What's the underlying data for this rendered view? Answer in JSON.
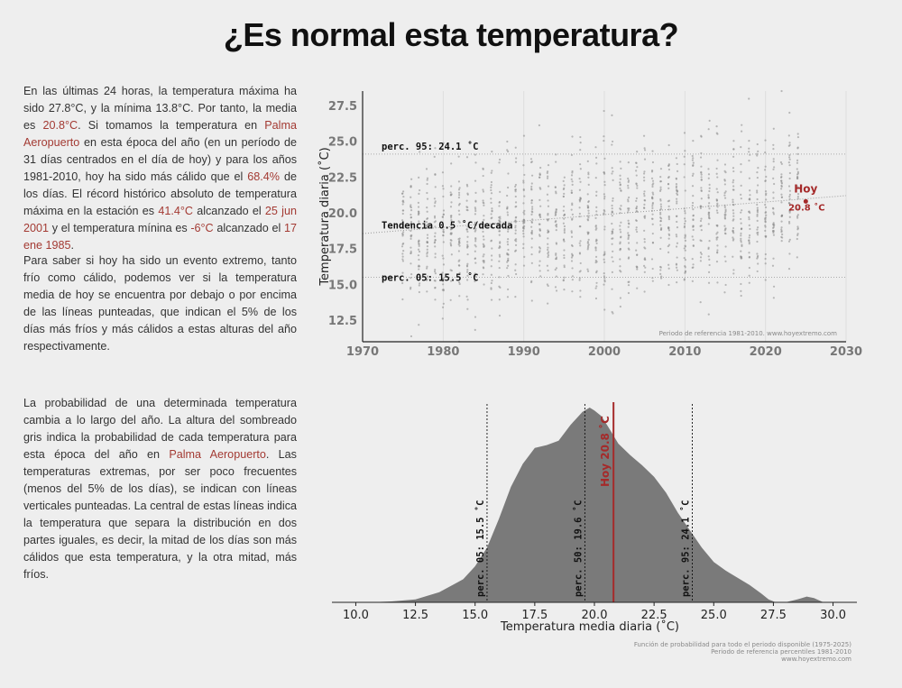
{
  "title": "¿Es normal esta temperatura?",
  "para1": {
    "t1": "En las últimas 24 horas, la temperatura máxima ha sido 27.8°C, y la mínima 13.8°C. Por tanto, la media es ",
    "h1": "20.8°C",
    "t2": ". Si tomamos la temperatura en ",
    "h2": "Palma Aeropuerto",
    "t3": " en esta época del año (en un período de 31 días centrados en el día de hoy) y para los años 1981-2010, hoy ha sido más cálido que el ",
    "h3": "68.4%",
    "t4": " de los días. El récord histórico absoluto de temperatura máxima en la estación es ",
    "h4": "41.4°C",
    "t5": " alcanzado el ",
    "h5": "25 jun 2001",
    "t6": " y el temperatura mínina es ",
    "h6": "-6°C",
    "t7": " alcanzado el ",
    "h7": "17 ene 1985",
    "t8": "."
  },
  "para2": "Para saber si hoy ha sido un evento extremo, tanto frío como cálido, podemos ver si la temperatura media de hoy se encuentra por debajo o por encima de las líneas punteadas, que indican el 5% de los días más fríos y más cálidos a estas alturas del año respectivamente.",
  "para3": {
    "t1": "La probabilidad de una determinada temperatura cambia a lo largo del año. La altura del sombreado gris indica la probabilidad de cada temperatura para esta época del año en ",
    "h1": "Palma Aeropuerto",
    "t2": ". Las temperaturas extremas, por ser poco frecuentes (menos del 5% de los días), se indican con líneas verticales punteadas. La central de estas líneas indica la temperatura que separa la distribución en dos partes iguales, es decir, la mitad de los días son más cálidos que esta temperatura, y la otra mitad, más fríos."
  },
  "colors": {
    "highlight": "#a33a33",
    "today": "#a52a2a",
    "density": "#7a7a7a",
    "points": "#888888"
  },
  "chart_data": [
    {
      "type": "scatter",
      "ylabel": "Temperatura diaria ($^\\circ$C)",
      "ylabel_text": "Temperatura diaria (˚C)",
      "xlim": [
        1970,
        2030
      ],
      "ylim": [
        11,
        28.5
      ],
      "xticks": [
        1970,
        1980,
        1990,
        2000,
        2010,
        2020,
        2030
      ],
      "yticks": [
        12.5,
        15.0,
        17.5,
        20.0,
        22.5,
        25.0,
        27.5
      ],
      "ytick_labels": [
        "12.5",
        "15.0",
        "17.5",
        "20.0",
        "22.5",
        "25.0",
        "27.5"
      ],
      "years": [
        1975,
        2025
      ],
      "points_per_year": 31,
      "p95": 24.1,
      "p05": 15.5,
      "p95_label": "perc. 95: 24.1 ˚C",
      "p05_label": "perc. 05: 15.5 ˚C",
      "trend_label": "Tendencia 0.5 ˚C/decada",
      "trend_per_decade": 0.5,
      "trend_line": [
        [
          1970,
          18.55
        ],
        [
          2030,
          21.2
        ]
      ],
      "today": {
        "year": 2025,
        "value": 20.8,
        "label": "Hoy",
        "value_label": "20.8 ˚C"
      },
      "footnote": "Periodo de referencia 1981-2010. www.hoyextremo.com"
    },
    {
      "type": "area",
      "xlabel": "Temperatura media diaria (˚C)",
      "xlim": [
        9.0,
        31.0
      ],
      "xticks": [
        10.0,
        12.5,
        15.0,
        17.5,
        20.0,
        22.5,
        25.0,
        27.5,
        30.0
      ],
      "xtick_labels": [
        "10.0",
        "12.5",
        "15.0",
        "17.5",
        "20.0",
        "22.5",
        "25.0",
        "27.5",
        "30.0"
      ],
      "density": {
        "x": [
          10.5,
          11.5,
          12.5,
          13.5,
          14.5,
          15.0,
          15.5,
          16.0,
          16.5,
          17.0,
          17.5,
          18.0,
          18.5,
          19.0,
          19.5,
          19.8,
          20.0,
          20.3,
          20.6,
          21.0,
          21.5,
          22.0,
          22.5,
          23.0,
          23.5,
          24.0,
          24.5,
          25.0,
          25.5,
          26.0,
          26.5,
          27.0,
          27.3,
          27.6,
          28.0,
          28.5,
          28.9,
          29.2,
          29.6
        ],
        "y": [
          0.0,
          0.003,
          0.01,
          0.035,
          0.08,
          0.125,
          0.19,
          0.29,
          0.4,
          0.48,
          0.535,
          0.545,
          0.56,
          0.615,
          0.66,
          0.675,
          0.665,
          0.645,
          0.605,
          0.55,
          0.51,
          0.475,
          0.435,
          0.38,
          0.31,
          0.25,
          0.19,
          0.14,
          0.11,
          0.085,
          0.06,
          0.03,
          0.01,
          0.0,
          0.0,
          0.01,
          0.02,
          0.015,
          0.0
        ]
      },
      "vlines": [
        {
          "x": 15.5,
          "label": "perc. 05: 15.5 ˚C"
        },
        {
          "x": 19.6,
          "label": "perc. 50: 19.6 ˚C"
        },
        {
          "x": 24.1,
          "label": "perc. 95: 24.1 ˚C"
        }
      ],
      "today": {
        "x": 20.8,
        "label": "Hoy 20.8 ˚C"
      },
      "footnotes": [
        "Función de probabilidad para todo el periodo disponible (1975-2025)",
        "Periodo de referencia percentiles 1981-2010",
        "www.hoyextremo.com"
      ]
    }
  ]
}
